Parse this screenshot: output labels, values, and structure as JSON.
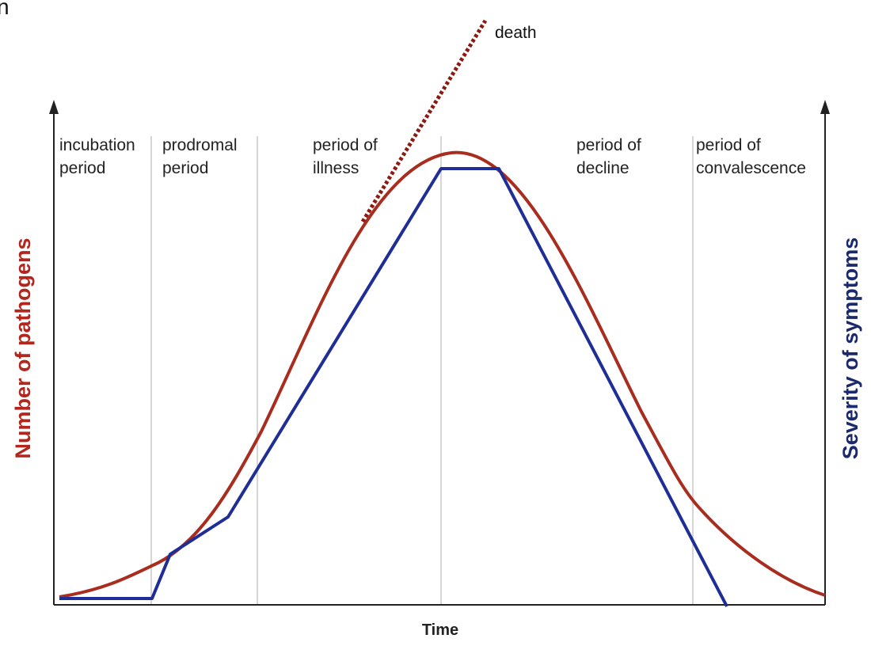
{
  "corner_mark": "n",
  "death_label": "death",
  "axes": {
    "x_label": "Time",
    "y_left_label": "Number of pathogens",
    "y_right_label": "Severity of symptoms"
  },
  "phases": [
    {
      "line1": "incubation",
      "line2": "period"
    },
    {
      "line1": "prodromal",
      "line2": "period"
    },
    {
      "line1": "period of",
      "line2": "illness"
    },
    {
      "line1": "period of",
      "line2": "decline"
    },
    {
      "line1": "period of",
      "line2": "convalescence"
    }
  ],
  "colors": {
    "pathogens": "#a82d1f",
    "symptoms": "#1f2e96",
    "death": "#8b1a12",
    "left_label": "#b3261e",
    "right_label": "#1a2a6c",
    "axis": "#222222",
    "divider": "#c8c8c8"
  }
}
